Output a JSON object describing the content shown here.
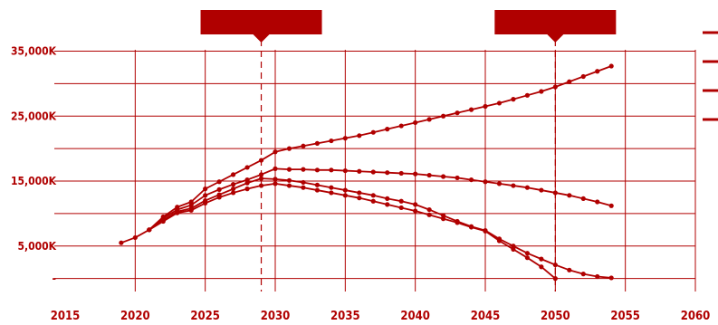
{
  "chart_data": {
    "type": "line",
    "title": "",
    "xlabel": "",
    "ylabel": "",
    "xlim": [
      2015,
      2060
    ],
    "ylim": [
      -2000,
      38000
    ],
    "x_ticks": [
      2015,
      2020,
      2025,
      2030,
      2035,
      2040,
      2045,
      2050,
      2055,
      2060
    ],
    "y_ticks": [
      {
        "value": 0,
        "label": "-"
      },
      {
        "value": 5000,
        "label": "5,000K"
      },
      {
        "value": 15000,
        "label": "15,000K"
      },
      {
        "value": 25000,
        "label": "25,000K"
      },
      {
        "value": 35000,
        "label": "35,000K"
      }
    ],
    "grid": true,
    "legend": {
      "position": "top-right",
      "entries": [
        "",
        "",
        "",
        ""
      ]
    },
    "callouts": [
      {
        "x": 2029,
        "label": ""
      },
      {
        "x": 2050,
        "label": ""
      }
    ],
    "colors": {
      "series": "#b00000",
      "grid": "#b00000",
      "text": "#b00000",
      "callout": "#b00000"
    },
    "series": [
      {
        "x": [
          2019,
          2020,
          2021,
          2022,
          2023,
          2024,
          2025,
          2026,
          2027,
          2028,
          2029,
          2030,
          2031,
          2032,
          2033,
          2034,
          2035,
          2036,
          2037,
          2038,
          2039,
          2040,
          2041,
          2042,
          2043,
          2044,
          2045,
          2046,
          2047,
          2048,
          2049,
          2050,
          2051,
          2052,
          2053,
          2054
        ],
        "values": [
          5500,
          6300,
          7500,
          9500,
          11000,
          11800,
          13800,
          14900,
          16000,
          17100,
          18200,
          19500,
          20000,
          20400,
          20800,
          21200,
          21600,
          22000,
          22500,
          23000,
          23500,
          24000,
          24500,
          25000,
          25500,
          26000,
          26500,
          27000,
          27600,
          28200,
          28800,
          29500,
          30300,
          31100,
          31900,
          32700
        ]
      },
      {
        "x": [
          2021,
          2022,
          2023,
          2024,
          2025,
          2026,
          2027,
          2028,
          2029,
          2030,
          2031,
          2032,
          2033,
          2034,
          2035,
          2036,
          2037,
          2038,
          2039,
          2040,
          2041,
          2042,
          2043,
          2044,
          2045,
          2046,
          2047,
          2048,
          2049,
          2050,
          2051,
          2052,
          2053,
          2054
        ],
        "values": [
          7500,
          9300,
          10600,
          11300,
          12800,
          13700,
          14500,
          15200,
          16000,
          16900,
          16800,
          16800,
          16700,
          16700,
          16600,
          16500,
          16400,
          16300,
          16200,
          16100,
          15900,
          15700,
          15500,
          15200,
          14900,
          14600,
          14300,
          14000,
          13600,
          13200,
          12800,
          12300,
          11800,
          11200
        ]
      },
      {
        "x": [
          2021,
          2022,
          2023,
          2024,
          2025,
          2026,
          2027,
          2028,
          2029,
          2030,
          2031,
          2032,
          2033,
          2034,
          2035,
          2036,
          2037,
          2038,
          2039,
          2040,
          2041,
          2042,
          2043,
          2044,
          2045,
          2046,
          2047,
          2048,
          2049,
          2050,
          2051,
          2052,
          2053,
          2054
        ],
        "values": [
          7500,
          9000,
          10300,
          10800,
          12000,
          12900,
          13800,
          14700,
          15400,
          15300,
          15100,
          14800,
          14400,
          14000,
          13600,
          13200,
          12800,
          12300,
          11900,
          11400,
          10600,
          9700,
          8800,
          8000,
          7400,
          6100,
          5000,
          3900,
          3000,
          2100,
          1300,
          700,
          300,
          100
        ]
      },
      {
        "x": [
          2021,
          2022,
          2023,
          2024,
          2025,
          2026,
          2027,
          2028,
          2029,
          2030,
          2031,
          2032,
          2033,
          2034,
          2035,
          2036,
          2037,
          2038,
          2039,
          2040,
          2041,
          2042,
          2043,
          2044,
          2045,
          2046,
          2047,
          2048,
          2049,
          2050
        ],
        "values": [
          7500,
          8800,
          10100,
          10500,
          11600,
          12500,
          13200,
          13800,
          14300,
          14600,
          14300,
          14000,
          13600,
          13200,
          12800,
          12400,
          11900,
          11400,
          10900,
          10400,
          9800,
          9200,
          8600,
          7900,
          7300,
          5800,
          4500,
          3200,
          1800,
          0
        ]
      }
    ]
  }
}
